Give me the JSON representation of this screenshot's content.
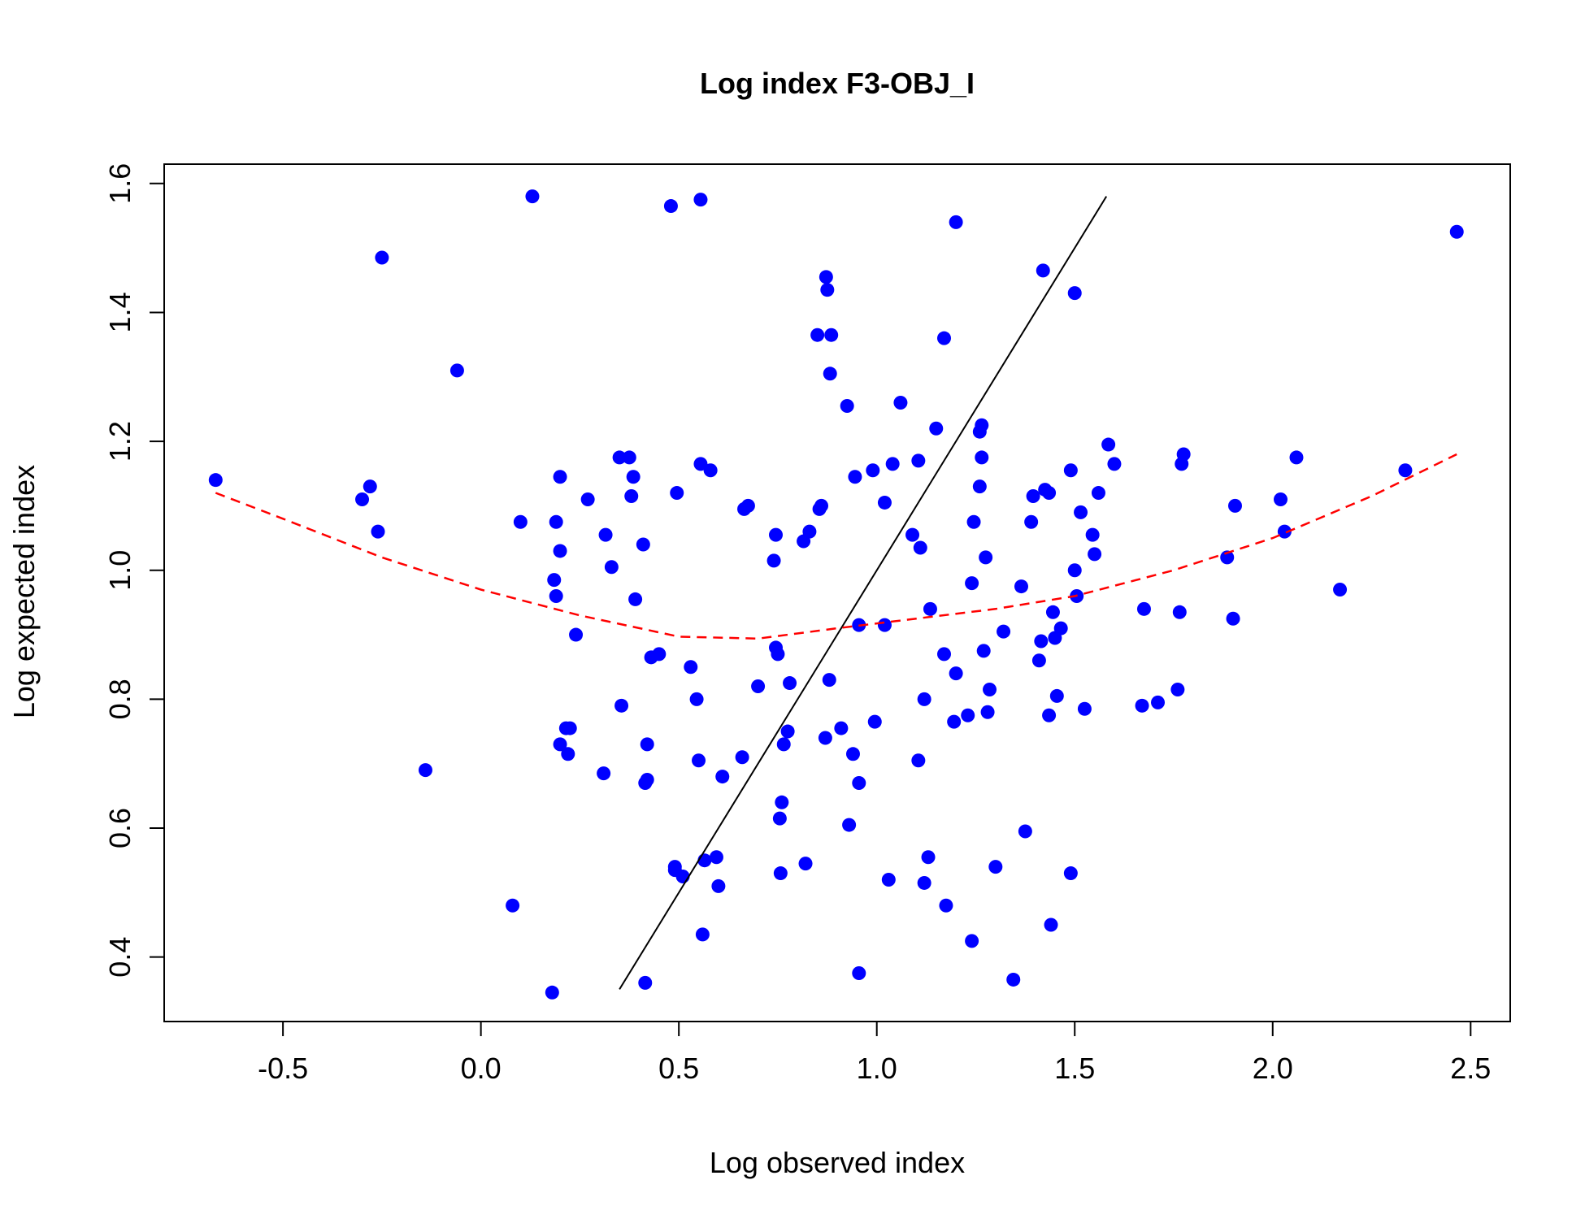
{
  "chart_data": {
    "type": "scatter",
    "title": "Log index F3-OBJ_I",
    "xlabel": "Log observed index",
    "ylabel": "Log expected index",
    "xlim": [
      -0.8,
      2.6
    ],
    "ylim": [
      0.3,
      1.63
    ],
    "xticks": [
      -0.5,
      0.0,
      0.5,
      1.0,
      1.5,
      2.0,
      2.5
    ],
    "xtick_labels": [
      "-0.5",
      "0.0",
      "0.5",
      "1.0",
      "1.5",
      "2.0",
      "2.5"
    ],
    "yticks": [
      0.4,
      0.6,
      0.8,
      1.0,
      1.2,
      1.4,
      1.6
    ],
    "ytick_labels": [
      "0.4",
      "0.6",
      "0.8",
      "1.0",
      "1.2",
      "1.4",
      "1.6"
    ],
    "grid": false,
    "colors": {
      "points": "#0000ff",
      "smooth": "#ff0000",
      "reference": "#000000"
    },
    "points": [
      [
        -0.67,
        1.14
      ],
      [
        -0.3,
        1.11
      ],
      [
        -0.28,
        1.13
      ],
      [
        -0.26,
        1.06
      ],
      [
        -0.25,
        1.485
      ],
      [
        -0.14,
        0.69
      ],
      [
        -0.06,
        1.31
      ],
      [
        0.08,
        0.48
      ],
      [
        0.1,
        1.075
      ],
      [
        0.13,
        1.58
      ],
      [
        0.18,
        0.345
      ],
      [
        0.185,
        0.985
      ],
      [
        0.19,
        1.075
      ],
      [
        0.19,
        0.96
      ],
      [
        0.2,
        1.03
      ],
      [
        0.2,
        1.145
      ],
      [
        0.2,
        0.73
      ],
      [
        0.215,
        0.755
      ],
      [
        0.22,
        0.715
      ],
      [
        0.225,
        0.755
      ],
      [
        0.24,
        0.9
      ],
      [
        0.27,
        1.11
      ],
      [
        0.31,
        0.685
      ],
      [
        0.315,
        1.055
      ],
      [
        0.33,
        1.005
      ],
      [
        0.35,
        1.175
      ],
      [
        0.355,
        0.79
      ],
      [
        0.375,
        1.175
      ],
      [
        0.38,
        1.115
      ],
      [
        0.385,
        1.145
      ],
      [
        0.39,
        0.955
      ],
      [
        0.41,
        1.04
      ],
      [
        0.415,
        0.36
      ],
      [
        0.415,
        0.67
      ],
      [
        0.42,
        0.675
      ],
      [
        0.42,
        0.73
      ],
      [
        0.43,
        0.865
      ],
      [
        0.45,
        0.87
      ],
      [
        0.48,
        1.565
      ],
      [
        0.49,
        0.54
      ],
      [
        0.49,
        0.535
      ],
      [
        0.495,
        1.12
      ],
      [
        0.51,
        0.525
      ],
      [
        0.53,
        0.85
      ],
      [
        0.545,
        0.8
      ],
      [
        0.55,
        0.705
      ],
      [
        0.555,
        1.575
      ],
      [
        0.555,
        1.165
      ],
      [
        0.56,
        0.435
      ],
      [
        0.565,
        0.55
      ],
      [
        0.58,
        1.155
      ],
      [
        0.595,
        0.555
      ],
      [
        0.6,
        0.51
      ],
      [
        0.61,
        0.68
      ],
      [
        0.66,
        0.71
      ],
      [
        0.665,
        1.095
      ],
      [
        0.675,
        1.1
      ],
      [
        0.7,
        0.82
      ],
      [
        0.74,
        1.015
      ],
      [
        0.745,
        0.88
      ],
      [
        0.745,
        1.055
      ],
      [
        0.75,
        0.87
      ],
      [
        0.755,
        0.615
      ],
      [
        0.757,
        0.53
      ],
      [
        0.76,
        0.64
      ],
      [
        0.765,
        0.73
      ],
      [
        0.775,
        0.75
      ],
      [
        0.78,
        0.825
      ],
      [
        0.815,
        1.045
      ],
      [
        0.82,
        0.545
      ],
      [
        0.83,
        1.06
      ],
      [
        0.85,
        1.365
      ],
      [
        0.855,
        1.095
      ],
      [
        0.86,
        1.1
      ],
      [
        0.87,
        0.74
      ],
      [
        0.872,
        1.455
      ],
      [
        0.875,
        1.435
      ],
      [
        0.88,
        0.83
      ],
      [
        0.882,
        1.305
      ],
      [
        0.885,
        1.365
      ],
      [
        0.91,
        0.755
      ],
      [
        0.925,
        1.255
      ],
      [
        0.93,
        0.605
      ],
      [
        0.94,
        0.715
      ],
      [
        0.945,
        1.145
      ],
      [
        0.955,
        0.375
      ],
      [
        0.955,
        0.915
      ],
      [
        0.955,
        0.67
      ],
      [
        0.99,
        1.155
      ],
      [
        0.995,
        0.765
      ],
      [
        1.02,
        1.105
      ],
      [
        1.02,
        0.915
      ],
      [
        1.03,
        0.52
      ],
      [
        1.04,
        1.165
      ],
      [
        1.06,
        1.26
      ],
      [
        1.09,
        1.055
      ],
      [
        1.105,
        1.17
      ],
      [
        1.105,
        0.705
      ],
      [
        1.11,
        1.035
      ],
      [
        1.12,
        0.8
      ],
      [
        1.12,
        0.515
      ],
      [
        1.13,
        0.555
      ],
      [
        1.135,
        0.94
      ],
      [
        1.15,
        1.22
      ],
      [
        1.17,
        1.36
      ],
      [
        1.17,
        0.87
      ],
      [
        1.175,
        0.48
      ],
      [
        1.195,
        0.765
      ],
      [
        1.2,
        1.54
      ],
      [
        1.2,
        0.84
      ],
      [
        1.23,
        0.775
      ],
      [
        1.24,
        0.425
      ],
      [
        1.24,
        0.98
      ],
      [
        1.245,
        1.075
      ],
      [
        1.26,
        1.13
      ],
      [
        1.26,
        1.215
      ],
      [
        1.265,
        1.225
      ],
      [
        1.265,
        1.175
      ],
      [
        1.27,
        0.875
      ],
      [
        1.275,
        1.02
      ],
      [
        1.28,
        0.78
      ],
      [
        1.285,
        0.815
      ],
      [
        1.3,
        0.54
      ],
      [
        1.32,
        0.905
      ],
      [
        1.345,
        0.365
      ],
      [
        1.365,
        0.975
      ],
      [
        1.375,
        0.595
      ],
      [
        1.39,
        1.075
      ],
      [
        1.395,
        1.115
      ],
      [
        1.41,
        0.86
      ],
      [
        1.415,
        0.89
      ],
      [
        1.42,
        1.465
      ],
      [
        1.425,
        1.125
      ],
      [
        1.435,
        1.12
      ],
      [
        1.435,
        0.775
      ],
      [
        1.44,
        0.45
      ],
      [
        1.445,
        0.935
      ],
      [
        1.45,
        0.895
      ],
      [
        1.455,
        0.805
      ],
      [
        1.465,
        0.91
      ],
      [
        1.49,
        1.155
      ],
      [
        1.49,
        0.53
      ],
      [
        1.5,
        1.43
      ],
      [
        1.5,
        1.0
      ],
      [
        1.505,
        0.96
      ],
      [
        1.515,
        1.09
      ],
      [
        1.525,
        0.785
      ],
      [
        1.545,
        1.055
      ],
      [
        1.55,
        1.025
      ],
      [
        1.56,
        1.12
      ],
      [
        1.585,
        1.195
      ],
      [
        1.6,
        1.165
      ],
      [
        1.67,
        0.79
      ],
      [
        1.675,
        0.94
      ],
      [
        1.71,
        0.795
      ],
      [
        1.76,
        0.815
      ],
      [
        1.765,
        0.935
      ],
      [
        1.77,
        1.165
      ],
      [
        1.775,
        1.18
      ],
      [
        1.885,
        1.02
      ],
      [
        1.9,
        0.925
      ],
      [
        1.905,
        1.1
      ],
      [
        2.02,
        1.11
      ],
      [
        2.03,
        1.06
      ],
      [
        2.06,
        1.175
      ],
      [
        2.17,
        0.97
      ],
      [
        2.335,
        1.155
      ],
      [
        2.465,
        1.525
      ]
    ],
    "smooth": [
      [
        -0.67,
        1.12
      ],
      [
        -0.5,
        1.08
      ],
      [
        -0.25,
        1.02
      ],
      [
        0.0,
        0.97
      ],
      [
        0.25,
        0.93
      ],
      [
        0.5,
        0.897
      ],
      [
        0.7,
        0.894
      ],
      [
        0.9,
        0.91
      ],
      [
        1.1,
        0.925
      ],
      [
        1.3,
        0.94
      ],
      [
        1.5,
        0.96
      ],
      [
        1.75,
        1.0
      ],
      [
        2.0,
        1.05
      ],
      [
        2.25,
        1.115
      ],
      [
        2.465,
        1.18
      ]
    ],
    "reference": [
      [
        0.35,
        0.35
      ],
      [
        1.58,
        1.58
      ]
    ]
  }
}
